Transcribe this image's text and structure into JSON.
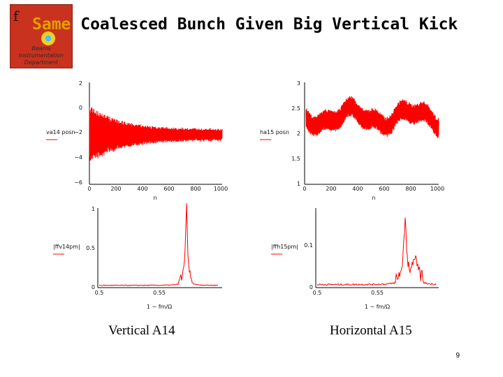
{
  "logo": {
    "letter": "f",
    "line1": "Beams",
    "line2": "Instrumentation",
    "line3": "Department"
  },
  "title": {
    "part1": "Same",
    "part2": " Coalesced Bunch Given Big Vertical Kick"
  },
  "plots": {
    "tl": {
      "label": "va14 posn",
      "yticks": [
        "2",
        "0",
        "−2",
        "−4",
        "−6"
      ],
      "xticks": [
        "0",
        "200",
        "400",
        "600",
        "800",
        "1000"
      ],
      "xlabel": "n"
    },
    "tr": {
      "label": "ha15 posn",
      "yticks": [
        "3",
        "2.5",
        "2",
        "1.5",
        "1"
      ],
      "xticks": [
        "0",
        "200",
        "400",
        "600",
        "800",
        "1000"
      ],
      "xlabel": "n"
    },
    "bl": {
      "label": "|ffv14pm|",
      "yticks": [
        "1",
        "0.5",
        "0"
      ],
      "xticks": [
        "0.5",
        "0.55"
      ],
      "xlabel": "1 − fm/Ω"
    },
    "br": {
      "label": "|ffh15pm|",
      "yticks": [
        "0.1",
        "0"
      ],
      "xticks": [
        "0.5",
        "0.55"
      ],
      "xlabel": "1 − fm/Ω"
    }
  },
  "captions": {
    "left": "Vertical A14",
    "right": "Horizontal A15"
  },
  "page_number": "9",
  "colors": {
    "trace": "#ff0000",
    "axis": "#000000"
  }
}
